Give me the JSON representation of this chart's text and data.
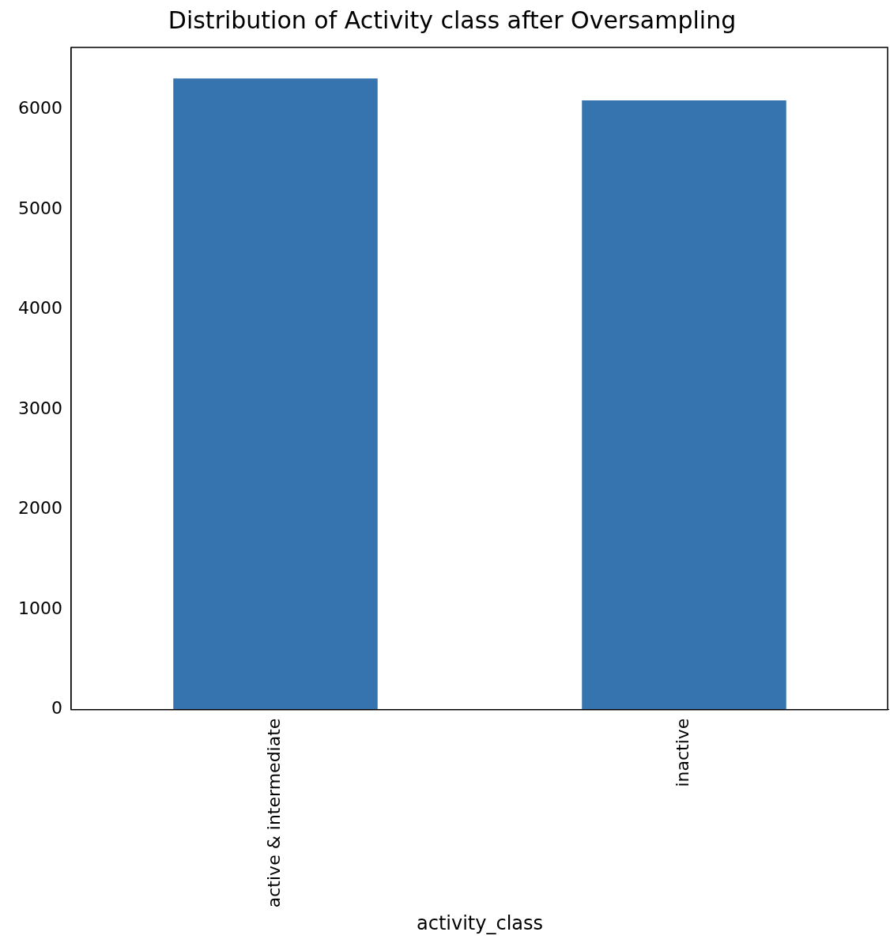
{
  "chart_data": {
    "type": "bar",
    "title": "Distribution of Activity class after Oversampling",
    "xlabel": "activity_class",
    "categories": [
      "active & intermediate",
      "inactive"
    ],
    "values": [
      6310,
      6090
    ],
    "color": "#3674b0",
    "ylim": [
      0,
      6620
    ],
    "yticks": [
      0,
      1000,
      2000,
      3000,
      4000,
      5000,
      6000
    ],
    "grid": false,
    "legend": false
  }
}
